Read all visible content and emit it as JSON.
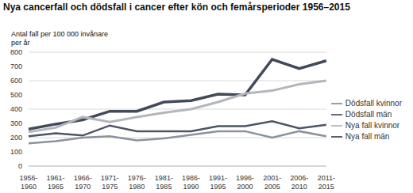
{
  "chart_data": {
    "type": "line",
    "title": "Nya cancerfall och dödsfall i cancer efter kön och femårsperioder 1956–2015",
    "y_label": "Antal fall per 100 000 invånare per år",
    "categories": [
      "1956-1960",
      "1961-1965",
      "1966-1970",
      "1971-1975",
      "1976-1980",
      "1981-1985",
      "1986-1990",
      "1991-1995",
      "1996-2000",
      "2001-2005",
      "2006-2010",
      "2011-2015"
    ],
    "series": [
      {
        "name": "Nya fall män",
        "color": "#404a5a",
        "values": [
          260,
          295,
          325,
          385,
          385,
          450,
          460,
          505,
          500,
          750,
          685,
          740
        ]
      },
      {
        "name": "Nya fall kvinnor",
        "color": "#b3b7bc",
        "values": [
          240,
          270,
          345,
          310,
          345,
          375,
          400,
          450,
          510,
          530,
          575,
          600
        ]
      },
      {
        "name": "Dödsfall män",
        "color": "#4b5563",
        "values": [
          210,
          230,
          215,
          285,
          245,
          245,
          245,
          280,
          280,
          315,
          265,
          290
        ]
      },
      {
        "name": "Dödsfall kvinnor",
        "color": "#8a939b",
        "values": [
          160,
          175,
          200,
          210,
          180,
          195,
          220,
          245,
          245,
          200,
          245,
          210
        ]
      }
    ],
    "ylim": [
      0,
      800
    ],
    "yticks": [
      0,
      100,
      200,
      300,
      400,
      500,
      600,
      700,
      800
    ],
    "grid": true,
    "legend": "right"
  }
}
